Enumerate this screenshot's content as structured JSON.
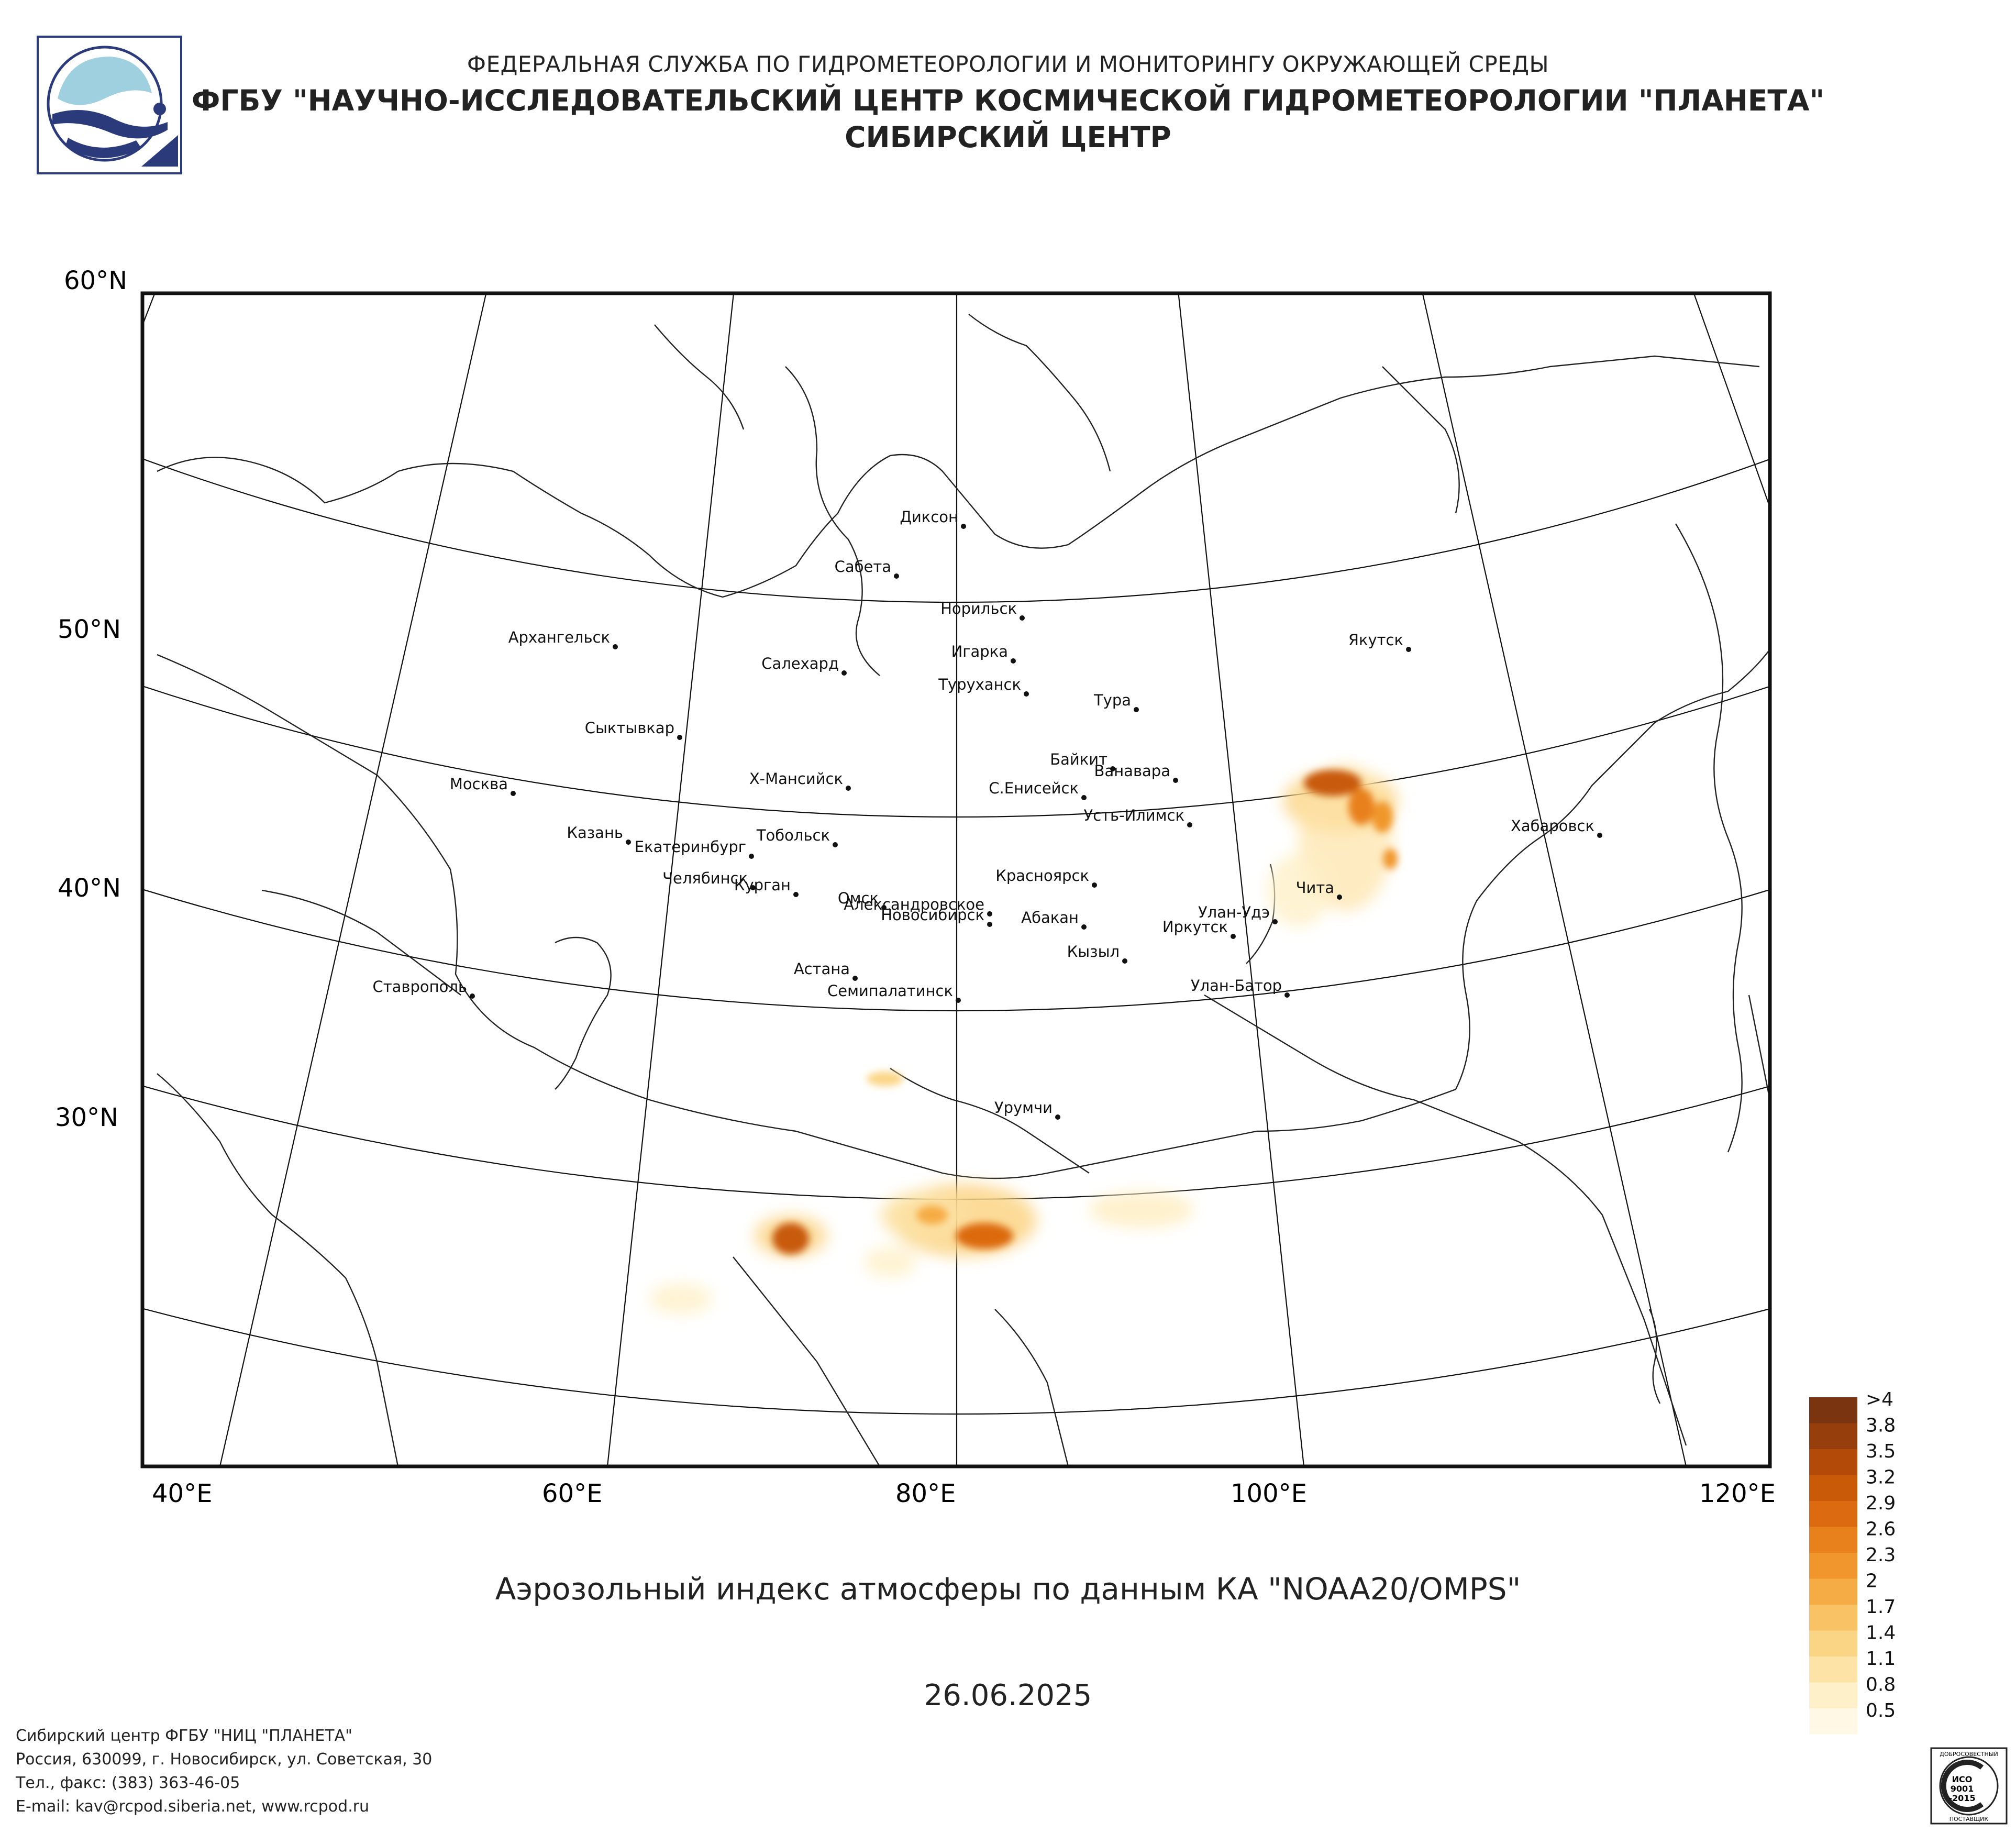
{
  "header": {
    "line1": "ФЕДЕРАЛЬНАЯ СЛУЖБА ПО ГИДРОМЕТЕОРОЛОГИИ И МОНИТОРИНГУ ОКРУЖАЮЩЕЙ СРЕДЫ",
    "line2": "ФГБУ \"НАУЧНО-ИССЛЕДОВАТЕЛЬСКИЙ ЦЕНТР КОСМИЧЕСКОЙ ГИДРОМЕТЕОРОЛОГИИ \"ПЛАНЕТА\"",
    "line3": "СИБИРСКИЙ ЦЕНТР"
  },
  "map": {
    "lat_labels": [
      "60°N",
      "50°N",
      "40°N",
      "30°N"
    ],
    "lon_labels": [
      "40°E",
      "60°E",
      "80°E",
      "100°E",
      "120°E"
    ],
    "cities": [
      {
        "name": "Диксон"
      },
      {
        "name": "Сабета"
      },
      {
        "name": "Норильск"
      },
      {
        "name": "Игарка"
      },
      {
        "name": "Салехард"
      },
      {
        "name": "Туруханск"
      },
      {
        "name": "Тура"
      },
      {
        "name": "Якутск"
      },
      {
        "name": "Архангельск"
      },
      {
        "name": "Сыктывкар"
      },
      {
        "name": "Байкит"
      },
      {
        "name": "Ванавара"
      },
      {
        "name": "Москва"
      },
      {
        "name": "Х-Мансийск"
      },
      {
        "name": "С.Енисейск"
      },
      {
        "name": "Усть-Илимск"
      },
      {
        "name": "Хабаровск"
      },
      {
        "name": "Казань"
      },
      {
        "name": "Тобольск"
      },
      {
        "name": "Екатеринбург"
      },
      {
        "name": "Челябинск"
      },
      {
        "name": "Курган"
      },
      {
        "name": "Красноярск"
      },
      {
        "name": "Александровское"
      },
      {
        "name": "Омск"
      },
      {
        "name": "Новосибирск"
      },
      {
        "name": "Чита"
      },
      {
        "name": "Абакан"
      },
      {
        "name": "Улан-Удэ"
      },
      {
        "name": "Иркутск"
      },
      {
        "name": "Кызыл"
      },
      {
        "name": "Астана"
      },
      {
        "name": "Ставрополь"
      },
      {
        "name": "Семипалатинск"
      },
      {
        "name": "Улан-Батор"
      },
      {
        "name": "Урумчи"
      }
    ]
  },
  "legend": {
    "labels": [
      ">4",
      "3.8",
      "3.5",
      "3.2",
      "2.9",
      "2.6",
      "2.3",
      "2",
      "1.7",
      "1.4",
      "1.1",
      "0.8",
      "0.5"
    ],
    "colors": [
      "#7a3510",
      "#963e0c",
      "#b34a08",
      "#c85a08",
      "#dc6a10",
      "#e8801c",
      "#f0962c",
      "#f6ac44",
      "#f9c264",
      "#fbd586",
      "#fde3a6",
      "#fef0c8",
      "#fff8e4"
    ]
  },
  "subtitle": "Аэрозольный индекс атмосферы по данным КА \"NOAA20/OMPS\"",
  "date": "26.06.2025",
  "footer": {
    "line1": "Сибирский центр ФГБУ \"НИЦ \"ПЛАНЕТА\"",
    "line2": "Россия, 630099, г. Новосибирск, ул. Советская, 30",
    "line3": "Тел., факс: (383) 363-46-05",
    "line4": "E-mail: kav@rcpod.siberia.net, www.rcpod.ru"
  },
  "cert": {
    "top": "ДОБРОСОВЕСТНЫЙ",
    "l1": "ИСО",
    "l2": "9001",
    "l3": "-2015",
    "bottom": "ПОСТАВЩИК"
  }
}
